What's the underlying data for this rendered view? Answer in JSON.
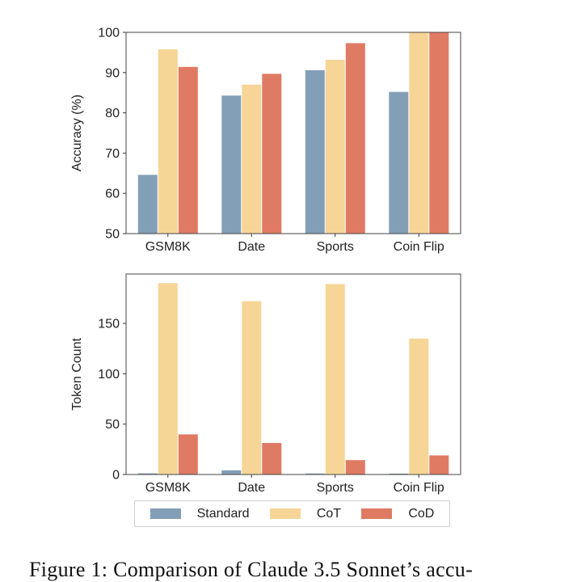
{
  "colors": {
    "Standard": "#839fb8",
    "CoT": "#f7d597",
    "CoD": "#df7a63"
  },
  "chart_data": [
    {
      "type": "bar",
      "categories": [
        "GSM8K",
        "Date",
        "Sports",
        "Coin Flip"
      ],
      "series": [
        {
          "name": "Standard",
          "values": [
            64.6,
            84.3,
            90.6,
            85.2
          ]
        },
        {
          "name": "CoT",
          "values": [
            95.8,
            87.0,
            93.2,
            100.0
          ]
        },
        {
          "name": "CoD",
          "values": [
            91.4,
            89.7,
            97.3,
            100.0
          ]
        }
      ],
      "ylabel": "Accuracy (%)",
      "xlabel": "",
      "ylim": [
        50,
        100
      ],
      "yticks": [
        50,
        60,
        70,
        80,
        90,
        100
      ],
      "ytick_labels": [
        "50",
        "60",
        "70",
        "80",
        "90",
        "100"
      ],
      "grid": false
    },
    {
      "type": "bar",
      "categories": [
        "GSM8K",
        "Date",
        "Sports",
        "Coin Flip"
      ],
      "series": [
        {
          "name": "Standard",
          "values": [
            1.1,
            4.2,
            1.0,
            0.9
          ]
        },
        {
          "name": "CoT",
          "values": [
            190,
            172,
            189,
            135
          ]
        },
        {
          "name": "CoD",
          "values": [
            39.8,
            31.3,
            14.3,
            18.9
          ]
        }
      ],
      "ylabel": "Token Count",
      "xlabel": "",
      "ylim": [
        0,
        199
      ],
      "yticks": [
        0,
        50,
        100,
        150
      ],
      "ytick_labels": [
        "0",
        "50",
        "100",
        "150"
      ],
      "grid": false
    }
  ],
  "legend": {
    "position": "bottom",
    "entries": [
      "Standard",
      "CoT",
      "CoD"
    ]
  },
  "caption": "Figure 1:  Comparison of Claude 3.5 Sonnet’s accu-"
}
